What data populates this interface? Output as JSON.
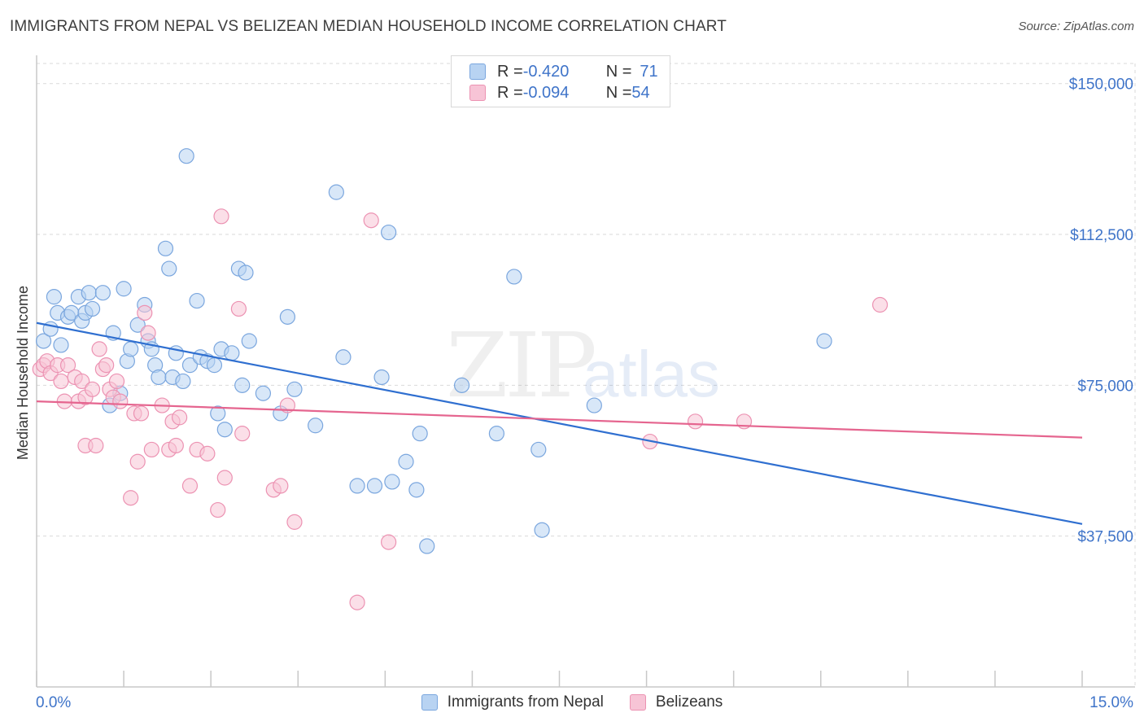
{
  "title": "IMMIGRANTS FROM NEPAL VS BELIZEAN MEDIAN HOUSEHOLD INCOME CORRELATION CHART",
  "source": "Source: ZipAtlas.com",
  "watermark": {
    "zip": "ZIP",
    "atlas": "atlas"
  },
  "legend": {
    "rows": [
      {
        "r_label": "R = ",
        "r_value": "-0.420",
        "n_label": "N = ",
        "n_value": "71"
      },
      {
        "r_label": "R = ",
        "r_value": "-0.094",
        "n_label": "N = ",
        "n_value": "54"
      }
    ]
  },
  "colors": {
    "blue_fill": "#b8d3f2",
    "blue_stroke": "#7aa6de",
    "blue_line": "#2f6fd0",
    "pink_fill": "#f7c4d6",
    "pink_stroke": "#ec92b2",
    "pink_line": "#e5658f",
    "grid": "#d9d9d9",
    "axis_text": "#3f74c9"
  },
  "chart_data": {
    "type": "scatter",
    "title": "IMMIGRANTS FROM NEPAL VS BELIZEAN MEDIAN HOUSEHOLD INCOME CORRELATION CHART",
    "xlabel": "",
    "ylabel": "Median Household Income",
    "xlim": [
      0,
      15
    ],
    "ylim": [
      0,
      155000
    ],
    "x_tick_labels": [
      "0.0%",
      "15.0%"
    ],
    "y_ticks": [
      37500,
      75000,
      112500,
      150000
    ],
    "y_tick_labels": [
      "$37,500",
      "$75,000",
      "$112,500",
      "$150,000"
    ],
    "grid": true,
    "series": [
      {
        "name": "Immigrants from Nepal",
        "r": -0.42,
        "n": 71,
        "trend": {
          "x": [
            0,
            15
          ],
          "y": [
            90500,
            40500
          ]
        },
        "points": [
          [
            0.1,
            86000
          ],
          [
            0.2,
            89000
          ],
          [
            0.25,
            97000
          ],
          [
            0.3,
            93000
          ],
          [
            0.35,
            85000
          ],
          [
            0.45,
            92000
          ],
          [
            0.5,
            93000
          ],
          [
            0.6,
            97000
          ],
          [
            0.65,
            91000
          ],
          [
            0.7,
            93000
          ],
          [
            0.75,
            98000
          ],
          [
            0.8,
            94000
          ],
          [
            0.95,
            98000
          ],
          [
            1.05,
            70000
          ],
          [
            1.1,
            88000
          ],
          [
            1.2,
            73000
          ],
          [
            1.25,
            99000
          ],
          [
            1.3,
            81000
          ],
          [
            1.35,
            84000
          ],
          [
            1.45,
            90000
          ],
          [
            1.55,
            95000
          ],
          [
            1.6,
            86000
          ],
          [
            1.65,
            84000
          ],
          [
            1.7,
            80000
          ],
          [
            1.75,
            77000
          ],
          [
            1.85,
            109000
          ],
          [
            1.9,
            104000
          ],
          [
            1.95,
            77000
          ],
          [
            2.0,
            83000
          ],
          [
            2.1,
            76000
          ],
          [
            2.15,
            132000
          ],
          [
            2.2,
            80000
          ],
          [
            2.3,
            96000
          ],
          [
            2.35,
            82000
          ],
          [
            2.45,
            81000
          ],
          [
            2.55,
            80000
          ],
          [
            2.6,
            68000
          ],
          [
            2.65,
            84000
          ],
          [
            2.7,
            64000
          ],
          [
            2.8,
            83000
          ],
          [
            2.9,
            104000
          ],
          [
            2.95,
            75000
          ],
          [
            3.0,
            103000
          ],
          [
            3.05,
            86000
          ],
          [
            3.25,
            73000
          ],
          [
            3.5,
            68000
          ],
          [
            3.6,
            92000
          ],
          [
            3.7,
            74000
          ],
          [
            4.0,
            65000
          ],
          [
            4.3,
            123000
          ],
          [
            4.4,
            82000
          ],
          [
            4.6,
            50000
          ],
          [
            4.85,
            50000
          ],
          [
            4.95,
            77000
          ],
          [
            5.05,
            113000
          ],
          [
            5.1,
            51000
          ],
          [
            5.3,
            56000
          ],
          [
            5.45,
            49000
          ],
          [
            5.5,
            63000
          ],
          [
            5.6,
            35000
          ],
          [
            6.1,
            75000
          ],
          [
            6.6,
            63000
          ],
          [
            6.85,
            102000
          ],
          [
            7.2,
            59000
          ],
          [
            7.25,
            39000
          ],
          [
            8.0,
            70000
          ],
          [
            11.3,
            86000
          ]
        ]
      },
      {
        "name": "Belizeans",
        "r": -0.094,
        "n": 54,
        "trend": {
          "x": [
            0,
            15
          ],
          "y": [
            71000,
            62000
          ]
        },
        "points": [
          [
            0.05,
            79000
          ],
          [
            0.1,
            80000
          ],
          [
            0.15,
            81000
          ],
          [
            0.2,
            78000
          ],
          [
            0.3,
            80000
          ],
          [
            0.35,
            76000
          ],
          [
            0.4,
            71000
          ],
          [
            0.45,
            80000
          ],
          [
            0.55,
            77000
          ],
          [
            0.6,
            71000
          ],
          [
            0.65,
            76000
          ],
          [
            0.7,
            72000
          ],
          [
            0.7,
            60000
          ],
          [
            0.8,
            74000
          ],
          [
            0.85,
            60000
          ],
          [
            0.9,
            84000
          ],
          [
            0.95,
            79000
          ],
          [
            1.0,
            80000
          ],
          [
            1.05,
            74000
          ],
          [
            1.1,
            72000
          ],
          [
            1.15,
            76000
          ],
          [
            1.2,
            71000
          ],
          [
            1.35,
            47000
          ],
          [
            1.4,
            68000
          ],
          [
            1.45,
            56000
          ],
          [
            1.5,
            68000
          ],
          [
            1.55,
            93000
          ],
          [
            1.6,
            88000
          ],
          [
            1.65,
            59000
          ],
          [
            1.8,
            70000
          ],
          [
            1.9,
            59000
          ],
          [
            1.95,
            66000
          ],
          [
            2.0,
            60000
          ],
          [
            2.05,
            67000
          ],
          [
            2.2,
            50000
          ],
          [
            2.3,
            59000
          ],
          [
            2.45,
            58000
          ],
          [
            2.6,
            44000
          ],
          [
            2.65,
            117000
          ],
          [
            2.7,
            52000
          ],
          [
            2.9,
            94000
          ],
          [
            2.95,
            63000
          ],
          [
            3.4,
            49000
          ],
          [
            3.5,
            50000
          ],
          [
            3.6,
            70000
          ],
          [
            3.7,
            41000
          ],
          [
            4.6,
            21000
          ],
          [
            4.8,
            116000
          ],
          [
            5.05,
            36000
          ],
          [
            8.8,
            61000
          ],
          [
            9.45,
            66000
          ],
          [
            10.15,
            66000
          ],
          [
            12.1,
            95000
          ]
        ]
      }
    ]
  }
}
